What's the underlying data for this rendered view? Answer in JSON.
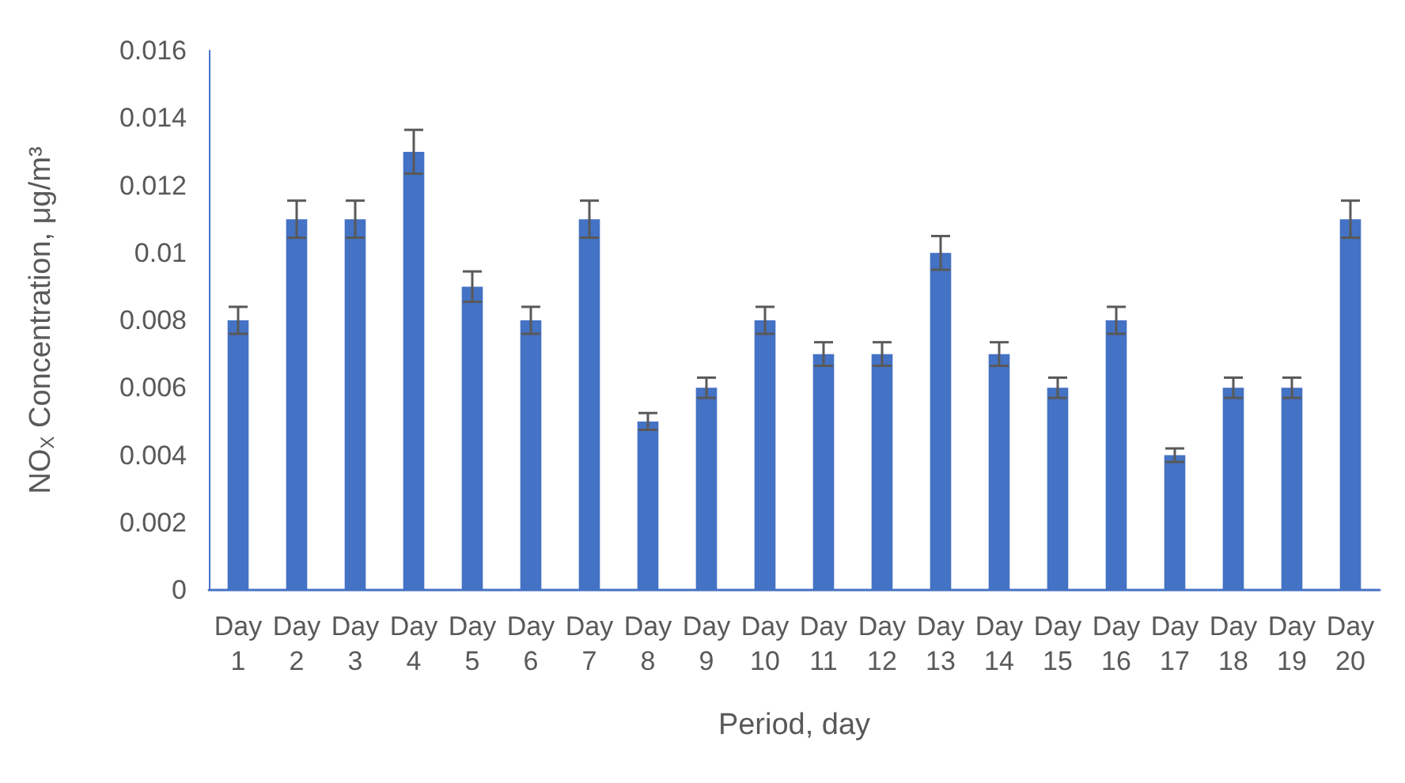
{
  "chart_data": {
    "type": "bar",
    "xlabel": "Period, day",
    "ylabel": "NO$_{X}$ Concentration, μg/m³",
    "categories": [
      "Day 1",
      "Day 2",
      "Day 3",
      "Day 4",
      "Day 5",
      "Day 6",
      "Day 7",
      "Day 8",
      "Day 9",
      "Day 10",
      "Day 11",
      "Day 12",
      "Day 13",
      "Day 14",
      "Day 15",
      "Day 16",
      "Day 17",
      "Day 18",
      "Day 19",
      "Day 20"
    ],
    "values": [
      0.008,
      0.011,
      0.011,
      0.013,
      0.009,
      0.008,
      0.011,
      0.005,
      0.006,
      0.008,
      0.007,
      0.007,
      0.01,
      0.007,
      0.006,
      0.008,
      0.004,
      0.006,
      0.006,
      0.011
    ],
    "errors": [
      0.0004,
      0.00055,
      0.00055,
      0.00065,
      0.00045,
      0.0004,
      0.00055,
      0.00025,
      0.0003,
      0.0004,
      0.00035,
      0.00035,
      0.0005,
      0.00035,
      0.0003,
      0.0004,
      0.0002,
      0.0003,
      0.0003,
      0.00055
    ],
    "color": "#4472c4",
    "ylim": [
      0,
      0.016
    ],
    "yticks": [
      0,
      0.002,
      0.004,
      0.006,
      0.008,
      0.01,
      0.012,
      0.014,
      0.016
    ],
    "grid": false
  }
}
